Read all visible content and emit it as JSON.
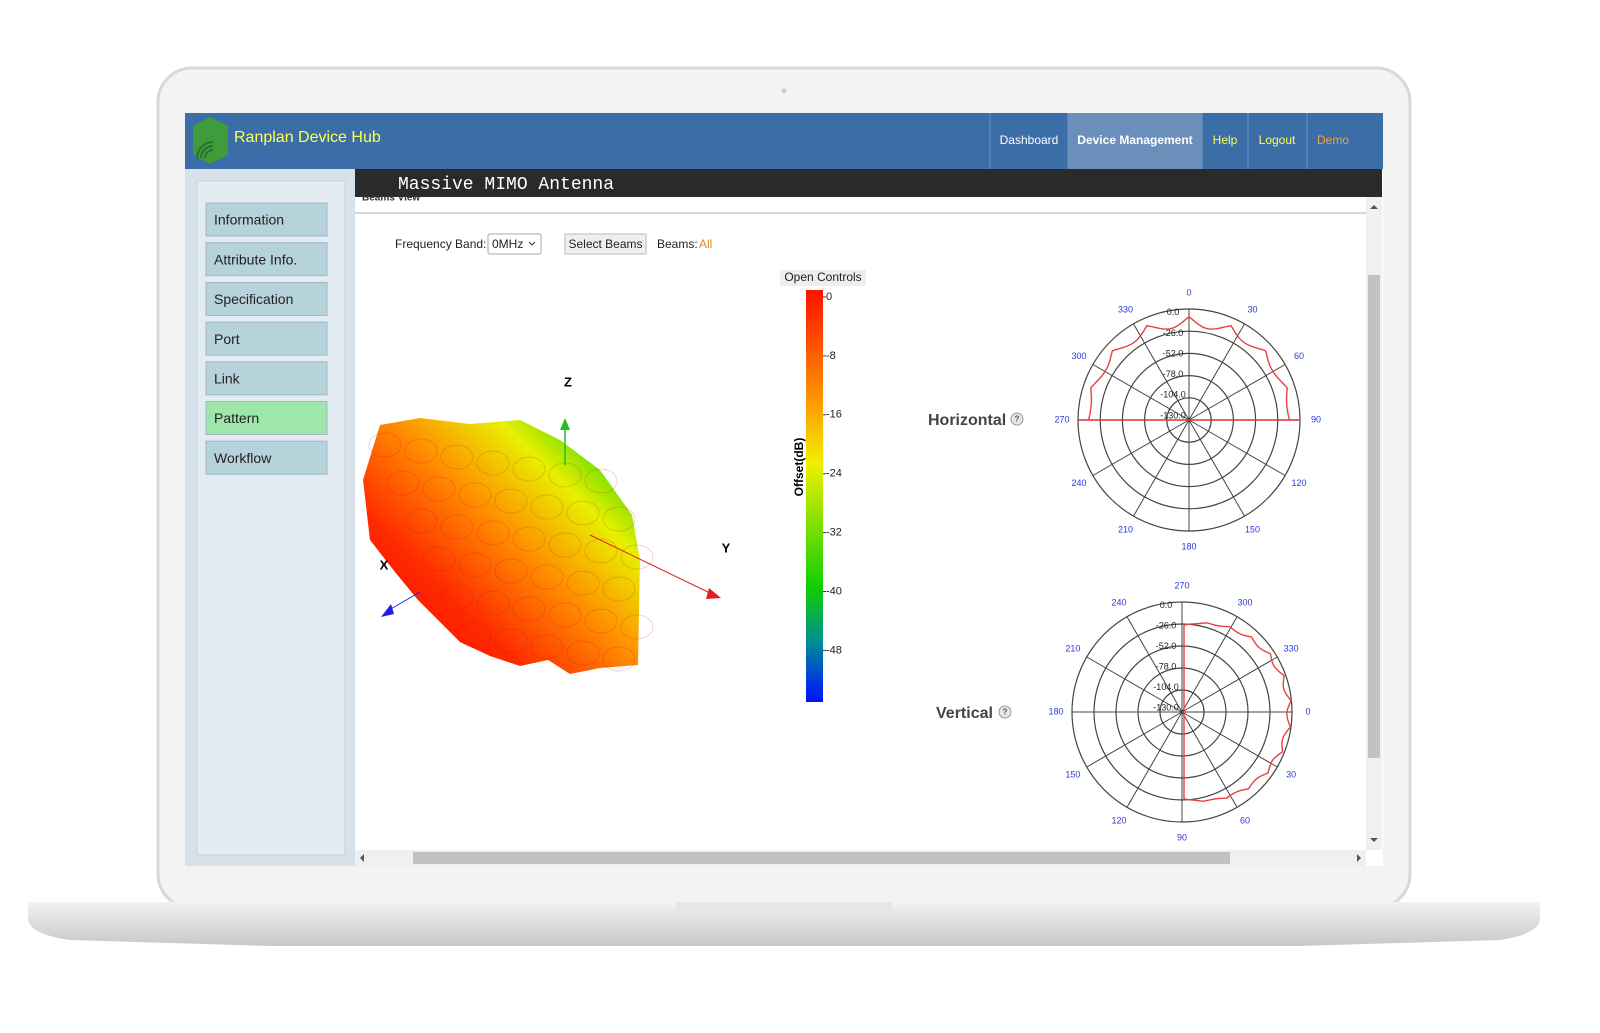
{
  "header": {
    "brand": "Ranplan Device Hub",
    "nav": [
      "Dashboard",
      "Device Management",
      "Help",
      "Logout",
      "Demo"
    ]
  },
  "page_title": "Massive MIMO Antenna",
  "section_title": "Beams View",
  "sidebar": [
    "Information",
    "Attribute Info.",
    "Specification",
    "Port",
    "Link",
    "Pattern",
    "Workflow"
  ],
  "controls": {
    "frequency_label": "Frequency Band:",
    "frequency_value": "0MHz",
    "select_button": "Select Beams",
    "beams_label": "Beams:",
    "beams_value": "All"
  },
  "beam_view": {
    "axes": [
      "Z",
      "Y",
      "X"
    ]
  },
  "colorbar": {
    "button": "Open Controls",
    "title": "Offset(dB)",
    "range": [
      0,
      -55
    ],
    "ticks": [
      0,
      -8,
      -16,
      -24,
      -32,
      -40,
      -48
    ]
  },
  "polar_plots": [
    {
      "title": "Horizontal",
      "help": "?",
      "angle_labels": [
        0,
        30,
        60,
        90,
        120,
        150,
        180,
        210,
        240,
        270,
        300,
        330
      ],
      "rlim": [
        -130,
        0
      ],
      "radial_ticks": [
        {
          "value": 0,
          "label": "0.0"
        },
        {
          "value": -26,
          "label": "-26.0"
        },
        {
          "value": -52,
          "label": "-52.0"
        },
        {
          "value": -78,
          "label": "-78.0"
        },
        {
          "value": -104,
          "label": "-104.0"
        },
        {
          "value": -130,
          "label": "-130.0"
        }
      ]
    },
    {
      "title": "Vertical",
      "help": "?",
      "angle_labels": [
        270,
        300,
        330,
        0,
        30,
        60,
        90,
        120,
        150,
        180,
        210,
        240
      ],
      "rlim": [
        -130,
        0
      ],
      "radial_ticks": [
        {
          "value": 0,
          "label": "0.0"
        },
        {
          "value": -26,
          "label": "-26.0"
        },
        {
          "value": -52,
          "label": "-52.0"
        },
        {
          "value": -78,
          "label": "-78.0"
        },
        {
          "value": -104,
          "label": "-104.0"
        },
        {
          "value": -130,
          "label": "-130.0"
        }
      ]
    }
  ]
}
